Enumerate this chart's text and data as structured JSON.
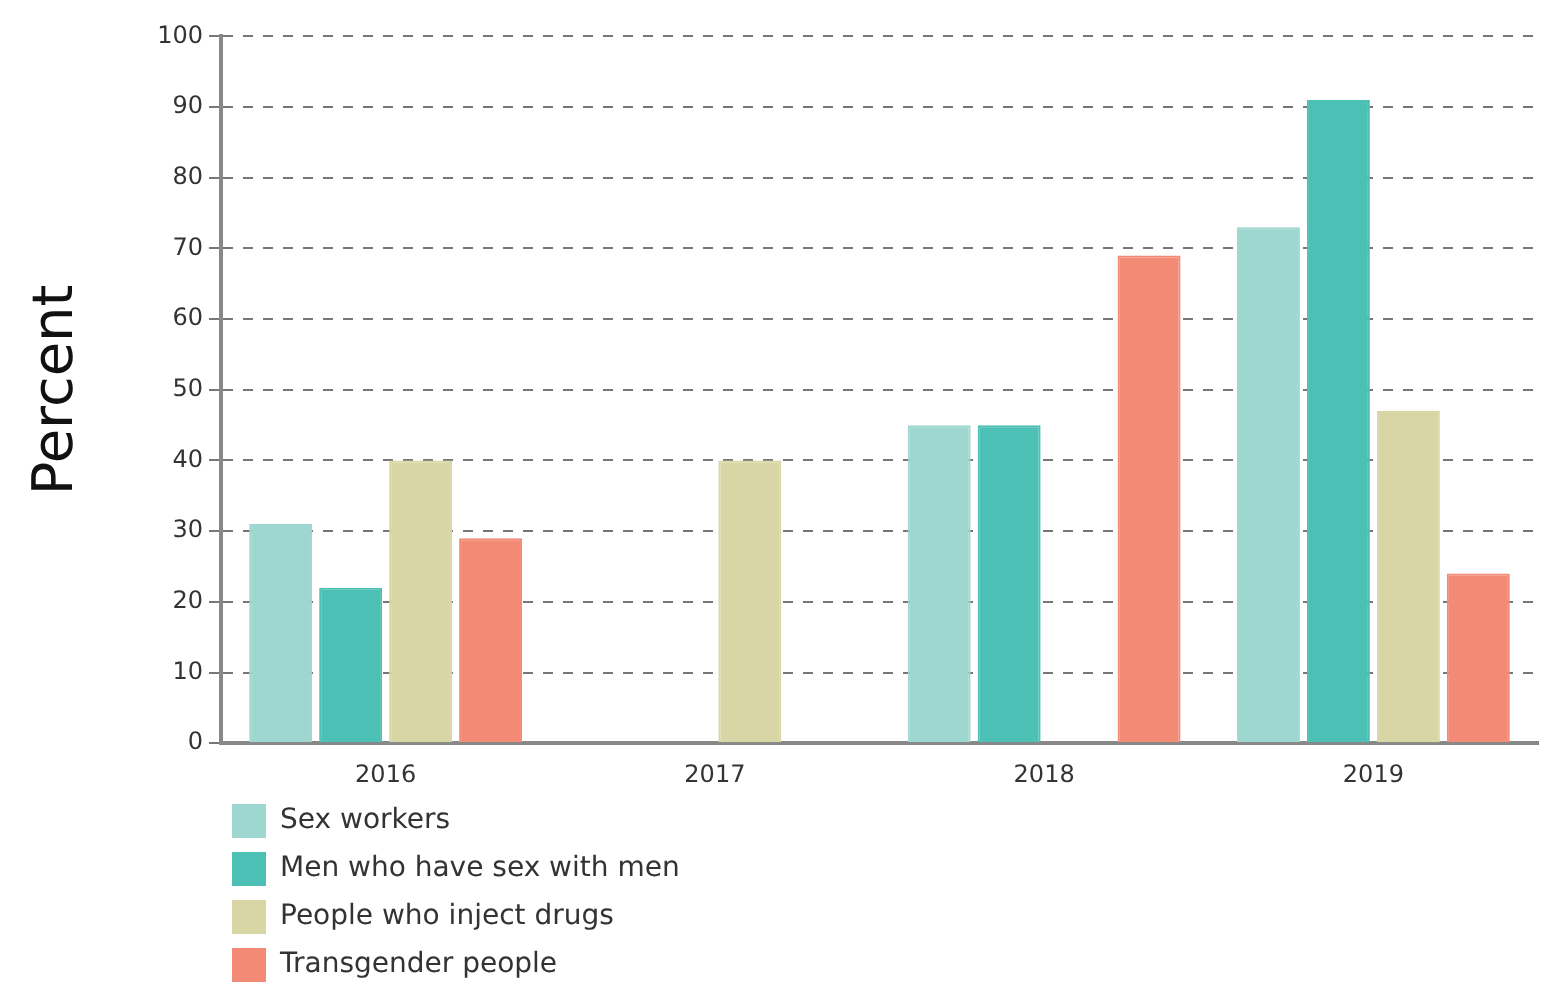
{
  "chart_data": {
    "type": "bar",
    "ylabel": "Percent",
    "categories": [
      "2016",
      "2017",
      "2018",
      "2019"
    ],
    "series": [
      {
        "name": "Sex workers",
        "color": "#9dd7cf",
        "values": [
          31,
          null,
          45,
          73
        ]
      },
      {
        "name": "Men who have sex with men",
        "color": "#4cc0b4",
        "values": [
          22,
          null,
          45,
          91
        ]
      },
      {
        "name": "People who inject drugs",
        "color": "#d9d6a6",
        "values": [
          40,
          40,
          null,
          47
        ]
      },
      {
        "name": "Transgender people",
        "color": "#f38a76",
        "values": [
          29,
          null,
          69,
          24
        ]
      }
    ],
    "ylim": [
      0,
      100
    ],
    "yticks": [
      0,
      10,
      20,
      30,
      40,
      50,
      60,
      70,
      80,
      90,
      100
    ],
    "grid": "y",
    "legend": "bottom"
  }
}
